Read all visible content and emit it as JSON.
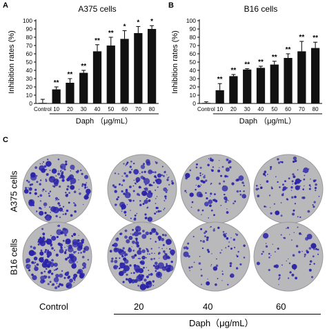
{
  "panels": {
    "a_letter": "A",
    "b_letter": "B",
    "c_letter": "C"
  },
  "chart_data": [
    {
      "type": "bar",
      "title": "A375 cells",
      "xlabel": "Daph （μg/mL）",
      "ylabel": "Inhibition rates (%)",
      "ylim": [
        0,
        100
      ],
      "yticks": [
        0,
        10,
        20,
        30,
        40,
        50,
        60,
        70,
        80,
        90,
        100
      ],
      "categories": [
        "Control",
        "10",
        "20",
        "30",
        "40",
        "50",
        "60",
        "70",
        "80"
      ],
      "values": [
        0,
        17,
        25,
        37,
        63,
        70,
        78,
        85,
        90
      ],
      "errors": [
        5,
        3,
        5,
        3,
        8,
        10,
        10,
        8,
        4
      ],
      "significance": [
        "",
        "**",
        "**",
        "**",
        "**",
        "**",
        "*",
        "*",
        "*"
      ]
    },
    {
      "type": "bar",
      "title": "B16 cells",
      "xlabel": "Daph （μg/mL）",
      "ylabel": "Inhibition rates (%)",
      "ylim": [
        0,
        100
      ],
      "yticks": [
        0,
        10,
        20,
        30,
        40,
        50,
        60,
        70,
        80,
        90,
        100
      ],
      "categories": [
        "Control",
        "10",
        "20",
        "30",
        "40",
        "50",
        "60",
        "70",
        "80"
      ],
      "values": [
        0,
        16,
        33,
        41,
        43,
        47,
        55,
        63,
        67
      ],
      "errors": [
        2,
        8,
        2,
        1,
        2,
        4,
        5,
        12,
        7
      ],
      "significance": [
        "",
        "**",
        "**",
        "**",
        "**",
        "**",
        "**",
        "**",
        "**"
      ]
    }
  ],
  "colony": {
    "row_labels": [
      "A375 cells",
      "B16 cells"
    ],
    "col_labels": [
      "Control",
      "20",
      "40",
      "60"
    ],
    "xlabel": "Daph（μg/mL）",
    "dish_color": "#b9b9bb",
    "colony_color": "#2a23a8",
    "density": [
      [
        0.75,
        0.7,
        0.35,
        0.3
      ],
      [
        0.95,
        0.9,
        0.22,
        0.15
      ]
    ]
  }
}
